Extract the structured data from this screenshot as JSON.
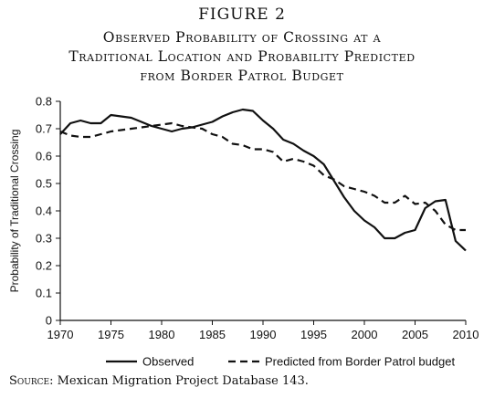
{
  "figure": {
    "label": "FIGURE 2",
    "title_lines": [
      "Observed Probability of Crossing at a",
      "Traditional Location and Probability Predicted",
      "from Border Patrol Budget"
    ],
    "source_lead": "Source:",
    "source_rest": " Mexican Migration Project Database 143."
  },
  "chart_data": {
    "type": "line",
    "title": "",
    "xlabel": "",
    "ylabel": "Probability of Traditional Crossing",
    "xlim": [
      1970,
      2010
    ],
    "ylim": [
      0,
      0.8
    ],
    "x_ticks": [
      1970,
      1975,
      1980,
      1985,
      1990,
      1995,
      2000,
      2005,
      2010
    ],
    "y_ticks": [
      0,
      0.1,
      0.2,
      0.3,
      0.4,
      0.5,
      0.6,
      0.7,
      0.8
    ],
    "y_tick_labels": [
      "0",
      "0.1",
      "0.2",
      "0.3",
      "0.4",
      "0.5",
      "0.6",
      "0.7",
      "0.8"
    ],
    "grid": false,
    "legend_position": "bottom",
    "series": [
      {
        "name": "Observed",
        "style": "solid",
        "color": "#111111",
        "x": [
          1970,
          1971,
          1972,
          1973,
          1974,
          1975,
          1976,
          1977,
          1978,
          1979,
          1980,
          1981,
          1982,
          1983,
          1984,
          1985,
          1986,
          1987,
          1988,
          1989,
          1990,
          1991,
          1992,
          1993,
          1994,
          1995,
          1996,
          1997,
          1998,
          1999,
          2000,
          2001,
          2002,
          2003,
          2004,
          2005,
          2006,
          2007,
          2008,
          2009,
          2010
        ],
        "values": [
          0.68,
          0.72,
          0.73,
          0.72,
          0.72,
          0.75,
          0.745,
          0.74,
          0.725,
          0.71,
          0.7,
          0.69,
          0.7,
          0.705,
          0.715,
          0.725,
          0.745,
          0.76,
          0.77,
          0.765,
          0.73,
          0.7,
          0.66,
          0.645,
          0.62,
          0.6,
          0.57,
          0.51,
          0.45,
          0.4,
          0.365,
          0.34,
          0.3,
          0.3,
          0.32,
          0.33,
          0.41,
          0.435,
          0.44,
          0.29,
          0.255
        ]
      },
      {
        "name": "Predicted from Border Patrol budget",
        "style": "dashed",
        "color": "#111111",
        "x": [
          1970,
          1971,
          1972,
          1973,
          1974,
          1975,
          1976,
          1977,
          1978,
          1979,
          1980,
          1981,
          1982,
          1983,
          1984,
          1985,
          1986,
          1987,
          1988,
          1989,
          1990,
          1991,
          1992,
          1993,
          1994,
          1995,
          1996,
          1997,
          1998,
          1999,
          2000,
          2001,
          2002,
          2003,
          2004,
          2005,
          2006,
          2007,
          2008,
          2009,
          2010
        ],
        "values": [
          0.69,
          0.675,
          0.67,
          0.67,
          0.68,
          0.69,
          0.695,
          0.7,
          0.705,
          0.71,
          0.715,
          0.72,
          0.71,
          0.705,
          0.7,
          0.68,
          0.67,
          0.645,
          0.64,
          0.625,
          0.625,
          0.615,
          0.58,
          0.59,
          0.58,
          0.565,
          0.53,
          0.515,
          0.49,
          0.48,
          0.47,
          0.455,
          0.43,
          0.43,
          0.455,
          0.425,
          0.43,
          0.4,
          0.35,
          0.33,
          0.33
        ]
      }
    ]
  }
}
